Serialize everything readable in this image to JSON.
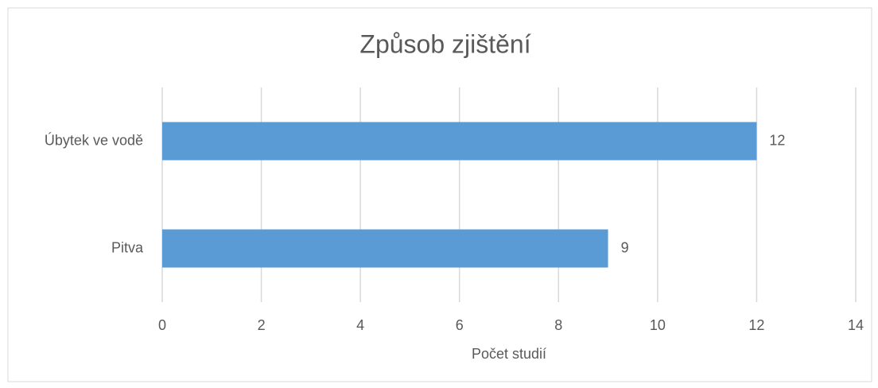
{
  "chart_data": {
    "type": "hbar",
    "title": "Způsob zjištění",
    "x_label": "Počet studií",
    "categories": [
      "Úbytek ve vodě",
      "Pitva"
    ],
    "values": [
      12,
      9
    ],
    "color": "#5b9bd5",
    "xlim": [
      0,
      14
    ],
    "xticks": [
      0,
      2,
      4,
      6,
      8,
      10,
      12,
      14
    ],
    "grid": true
  }
}
